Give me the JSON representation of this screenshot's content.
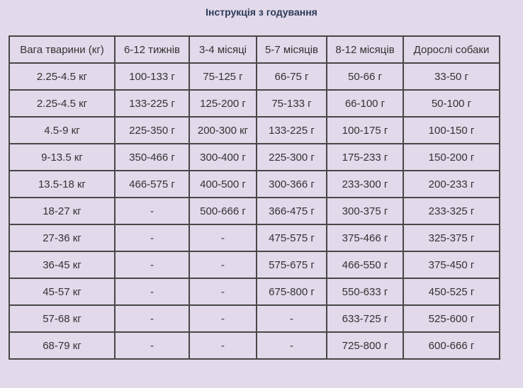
{
  "title": "Інструкція з годування",
  "table": {
    "headers": [
      "Вага тварини (кг)",
      "6-12 тижнів",
      "3-4 місяці",
      "5-7 місяців",
      "8-12 місяців",
      "Дорослі собаки"
    ],
    "rows": [
      [
        "2.25-4.5 кг",
        "100-133 г",
        "75-125 г",
        "66-75 г",
        "50-66 г",
        "33-50 г"
      ],
      [
        "2.25-4.5 кг",
        "133-225 г",
        "125-200 г",
        "75-133 г",
        "66-100 г",
        "50-100 г"
      ],
      [
        "4.5-9 кг",
        "225-350 г",
        "200-300 кг",
        "133-225 г",
        "100-175 г",
        "100-150 г"
      ],
      [
        "9-13.5 кг",
        "350-466 г",
        "300-400 г",
        "225-300 г",
        "175-233 г",
        "150-200 г"
      ],
      [
        "13.5-18 кг",
        "466-575 г",
        "400-500 г",
        "300-366 г",
        "233-300 г",
        "200-233 г"
      ],
      [
        "18-27 кг",
        "-",
        "500-666 г",
        "366-475 г",
        "300-375 г",
        "233-325 г"
      ],
      [
        "27-36 кг",
        "-",
        "-",
        "475-575 г",
        "375-466 г",
        "325-375 г"
      ],
      [
        "36-45 кг",
        "-",
        "-",
        "575-675 г",
        "466-550 г",
        "375-450 г"
      ],
      [
        "45-57 кг",
        "-",
        "-",
        "675-800 г",
        "550-633 г",
        "450-525 г"
      ],
      [
        "57-68 кг",
        "-",
        "-",
        "-",
        "633-725 г",
        "525-600 г"
      ],
      [
        "68-79 кг",
        "-",
        "-",
        "-",
        "725-800 г",
        "600-666 г"
      ]
    ]
  }
}
